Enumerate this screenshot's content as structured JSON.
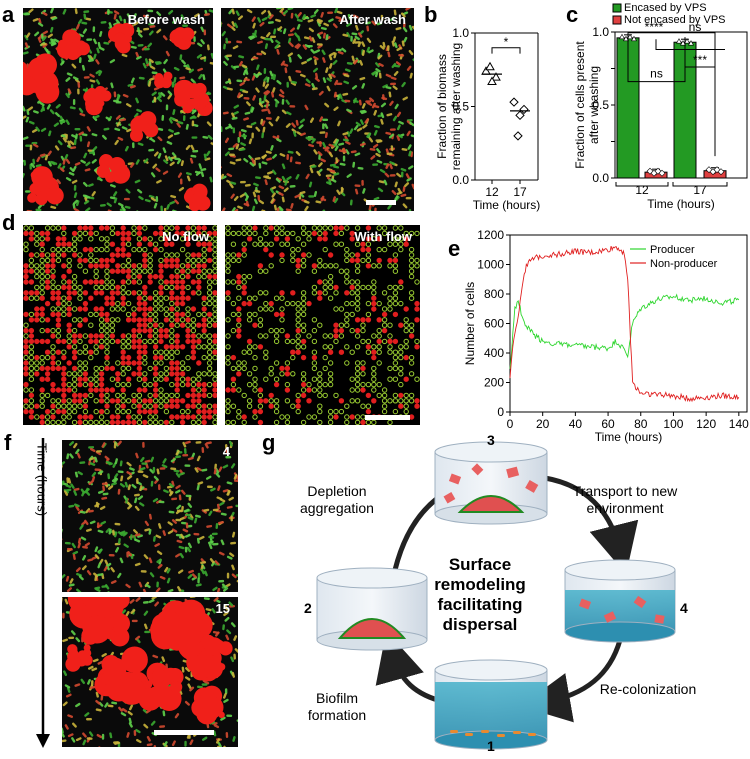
{
  "panels": {
    "a": {
      "letter": "a",
      "left_label": "Before wash",
      "right_label": "After wash"
    },
    "b": {
      "letter": "b"
    },
    "c": {
      "letter": "c"
    },
    "d": {
      "letter": "d",
      "left_label": "No flow",
      "right_label": "With flow"
    },
    "e": {
      "letter": "e"
    },
    "f": {
      "letter": "f",
      "axis_label": "Time (hours)",
      "top_label": "4",
      "bottom_label": "15"
    },
    "g": {
      "letter": "g",
      "center": [
        "Surface",
        "remodeling",
        "facilitating",
        "dispersal"
      ],
      "steps": [
        {
          "num": "1",
          "caption": ""
        },
        {
          "num": "2",
          "caption": ""
        },
        {
          "num": "3",
          "caption": ""
        },
        {
          "num": "4",
          "caption": ""
        }
      ],
      "arrows": [
        {
          "text": [
            "Depletion",
            "aggregation"
          ]
        },
        {
          "text": [
            "Transport to new",
            "environment"
          ]
        },
        {
          "text": [
            "Re-colonization"
          ]
        },
        {
          "text": [
            "Biofilm",
            "formation"
          ]
        }
      ]
    }
  },
  "colors": {
    "green": "#3fbf3f",
    "red": "#e8312b",
    "bar_green": "#239a23",
    "bar_red": "#e04040",
    "producer": "#2fd62f",
    "nonproducer": "#e02020"
  },
  "chart_data": [
    {
      "id": "b",
      "type": "scatter",
      "ylabel": "Fraction of biomass remaining after washing",
      "xlabel": "Time (hours)",
      "categories": [
        "12",
        "17"
      ],
      "ylim": [
        0.0,
        1.0
      ],
      "yticks": [
        "0.0",
        "0.5",
        "1.0"
      ],
      "series": [
        {
          "marker": "triangle",
          "category": "12",
          "values": [
            0.74,
            0.7,
            0.67,
            0.77
          ],
          "mean": 0.72
        },
        {
          "marker": "diamond",
          "category": "17",
          "values": [
            0.53,
            0.48,
            0.44,
            0.3
          ],
          "mean": 0.47
        }
      ],
      "significance": "*"
    },
    {
      "id": "c",
      "type": "bar",
      "ylabel": "Fraction of cells present after whashing",
      "xlabel": "Time (hours)",
      "categories": [
        "12",
        "17"
      ],
      "ylim": [
        0.0,
        1.0
      ],
      "yticks": [
        "0.0",
        "0.25",
        "0.5",
        "0.75",
        "1.0"
      ],
      "series": [
        {
          "name": "Encased by VPS",
          "values": [
            0.96,
            0.93
          ]
        },
        {
          "name": "Not encased by VPS",
          "values": [
            0.04,
            0.05
          ]
        }
      ],
      "significance": [
        {
          "label": "****"
        },
        {
          "label": "ns"
        },
        {
          "label": "ns"
        },
        {
          "label": "***"
        }
      ]
    },
    {
      "id": "e",
      "type": "line",
      "xlabel": "Time (hours)",
      "ylabel": "Number of cells",
      "xlim": [
        0,
        145
      ],
      "ylim": [
        0,
        1200
      ],
      "xticks": [
        "0",
        "20",
        "40",
        "60",
        "80",
        "100",
        "120",
        "140"
      ],
      "yticks": [
        "0",
        "200",
        "400",
        "600",
        "800",
        "1000",
        "1200"
      ],
      "series": [
        {
          "name": "Producer",
          "x": [
            0,
            3,
            5,
            8,
            10,
            15,
            20,
            30,
            40,
            50,
            60,
            65,
            70,
            72,
            75,
            80,
            90,
            100,
            110,
            120,
            130,
            140
          ],
          "y": [
            300,
            700,
            760,
            620,
            580,
            520,
            480,
            460,
            450,
            440,
            430,
            480,
            420,
            380,
            600,
            700,
            760,
            780,
            760,
            770,
            740,
            760
          ]
        },
        {
          "name": "Non-producer",
          "x": [
            0,
            3,
            5,
            8,
            10,
            15,
            20,
            30,
            40,
            50,
            60,
            65,
            70,
            72,
            75,
            80,
            90,
            100,
            110,
            120,
            130,
            140
          ],
          "y": [
            250,
            550,
            650,
            900,
            1000,
            1040,
            1060,
            1070,
            1090,
            1080,
            1100,
            1120,
            1080,
            900,
            200,
            130,
            120,
            110,
            90,
            100,
            110,
            100
          ]
        }
      ]
    }
  ]
}
